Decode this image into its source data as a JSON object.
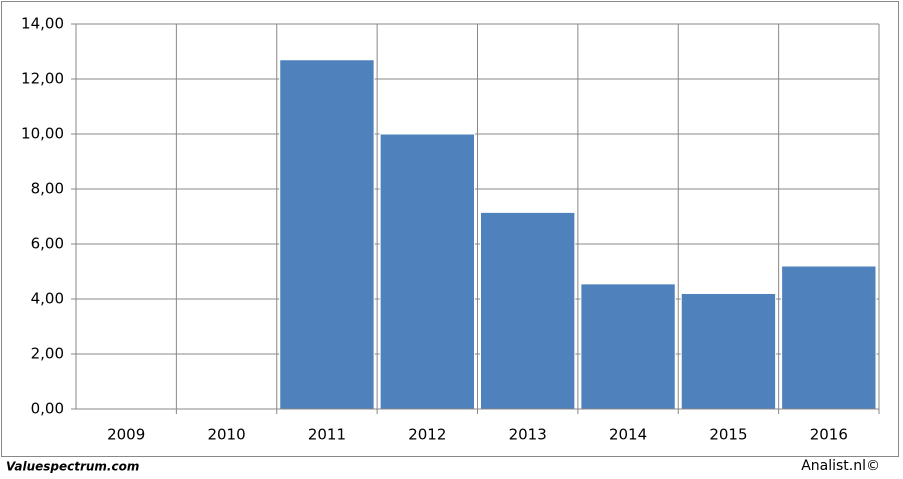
{
  "chart_data": {
    "type": "bar",
    "categories": [
      "2009",
      "2010",
      "2011",
      "2012",
      "2013",
      "2014",
      "2015",
      "2016"
    ],
    "values": [
      null,
      null,
      12.7,
      10.0,
      7.15,
      4.55,
      4.2,
      5.2
    ],
    "color": "#4f81bd",
    "ylim": [
      0,
      14
    ],
    "yticks": [
      {
        "value": 0,
        "label": "0,00"
      },
      {
        "value": 2,
        "label": "2,00"
      },
      {
        "value": 4,
        "label": "4,00"
      },
      {
        "value": 6,
        "label": "6,00"
      },
      {
        "value": 8,
        "label": "8,00"
      },
      {
        "value": 10,
        "label": "10,00"
      },
      {
        "value": 12,
        "label": "12,00"
      },
      {
        "value": 14,
        "label": "14,00"
      }
    ],
    "grid": true,
    "source": "Valuespectrum.com",
    "credit": "Analist.nl©"
  }
}
